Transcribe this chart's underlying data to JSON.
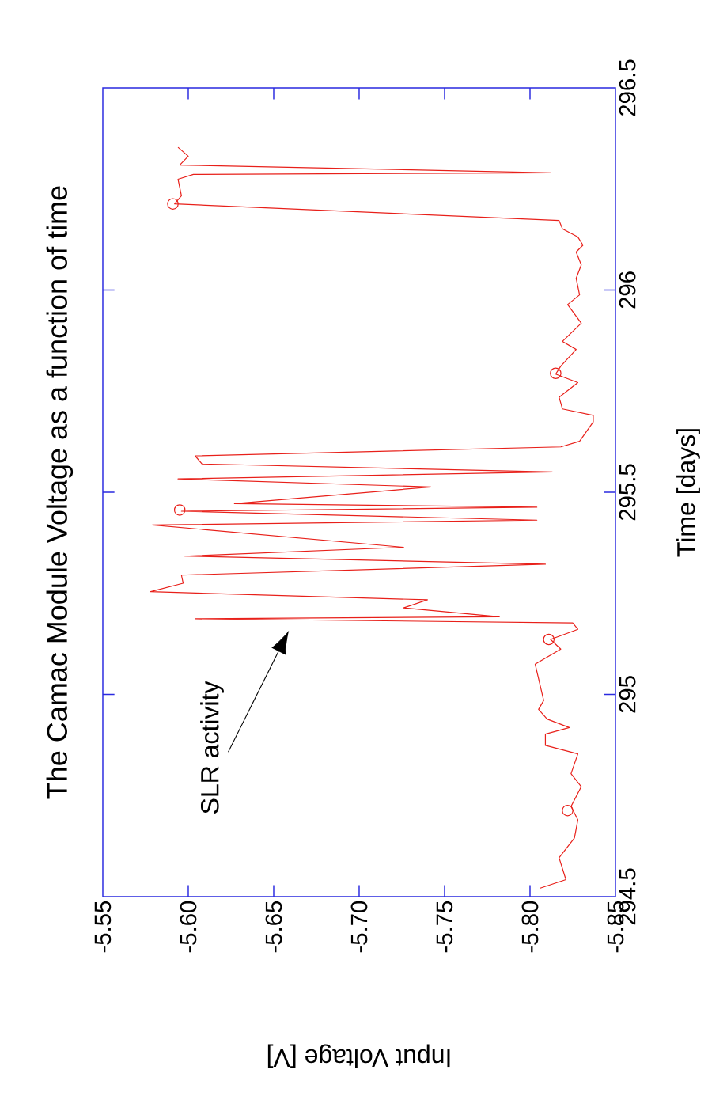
{
  "chart_data": {
    "type": "line",
    "title": "The Camac Module Voltage as a function of time",
    "xlabel": "Input Voltage [V]",
    "ylabel": "Time [days]",
    "xlim": [
      -5.55,
      -5.85
    ],
    "ylim": [
      294.5,
      296.5
    ],
    "xticks": [
      -5.55,
      {
        "value": -5.6,
        "label": "-5.60"
      },
      -5.65,
      {
        "value": -5.7,
        "label": "-5.70"
      },
      -5.75,
      {
        "value": -5.8,
        "label": "-5.80"
      },
      -5.85
    ],
    "yticks": [
      294.5,
      295,
      295.5,
      296,
      296.5
    ],
    "annotations": [
      "SLR activity"
    ],
    "series": [
      {
        "color": "#e8201a",
        "marker": "none",
        "x": [
          -5.806,
          -5.821,
          -5.817,
          -5.826,
          -5.828,
          -5.824,
          -5.83,
          -5.824,
          -5.828,
          -5.809,
          -5.809,
          -5.823,
          -5.81,
          -5.805,
          -5.808,
          -5.803,
          -5.818,
          -5.812,
          -5.828,
          -5.825,
          -5.604,
          -5.782,
          -5.726,
          -5.74,
          -5.578,
          -5.597,
          -5.596,
          -5.809,
          -5.598,
          -5.726,
          -5.579,
          -5.804,
          -5.596,
          -5.804,
          -5.627,
          -5.742,
          -5.594,
          -5.813,
          -5.608,
          -5.604,
          -5.818,
          -5.829,
          -5.837,
          -5.837,
          -5.819,
          -5.817,
          -5.828,
          -5.815,
          -5.818,
          -5.827,
          -5.819,
          -5.83,
          -5.822,
          -5.829,
          -5.827,
          -5.83,
          -5.827,
          -5.831,
          -5.828,
          -5.819,
          -5.817,
          -5.592,
          -5.596,
          -5.594,
          -5.603,
          -5.812,
          -5.595,
          -5.6,
          -5.594
        ],
        "values": [
          294.521,
          294.542,
          294.596,
          294.645,
          294.69,
          294.723,
          294.772,
          294.804,
          294.853,
          294.874,
          294.902,
          294.918,
          294.939,
          294.963,
          294.985,
          295.075,
          295.112,
          295.136,
          295.161,
          295.177,
          295.187,
          295.192,
          295.214,
          295.234,
          295.254,
          295.275,
          295.295,
          295.322,
          295.342,
          295.364,
          295.419,
          295.431,
          295.453,
          295.463,
          295.472,
          295.513,
          295.533,
          295.55,
          295.57,
          295.59,
          295.612,
          295.626,
          295.674,
          295.69,
          295.706,
          295.735,
          295.771,
          295.792,
          295.812,
          295.853,
          295.873,
          295.918,
          295.964,
          295.988,
          296.029,
          296.062,
          296.094,
          296.111,
          296.131,
          296.151,
          296.172,
          296.213,
          296.233,
          296.274,
          296.286,
          296.29,
          296.309,
          296.331,
          296.353
        ]
      },
      {
        "type": "scatter",
        "color": "#e8201a",
        "marker": "circle",
        "x": [
          -5.822,
          -5.811,
          -5.595,
          -5.815,
          -5.591
        ],
        "values": [
          294.713,
          295.136,
          295.456,
          295.794,
          296.213
        ]
      }
    ]
  }
}
